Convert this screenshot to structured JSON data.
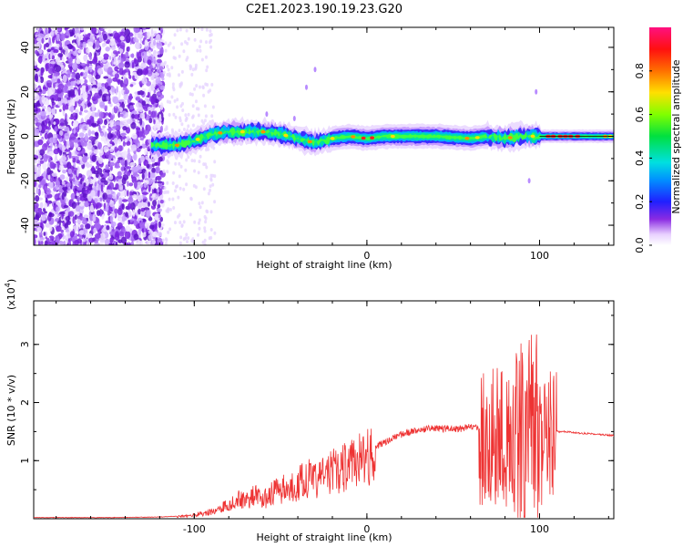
{
  "title": "C2E1.2023.190.19.23.G20",
  "colors": {
    "snr_line": "#ee3333",
    "spectro_scatter": "#7a2ee0"
  },
  "chart_data": [
    {
      "type": "heatmap",
      "xlabel": "Height of straight line (km)",
      "ylabel": "Frequency (Hz)",
      "xlim": [
        -193,
        143
      ],
      "ylim": [
        -49,
        49
      ],
      "xticks": [
        -100,
        0,
        100
      ],
      "xtick_labels": [
        "-100",
        "0",
        "100"
      ],
      "yticks": [
        -40,
        -20,
        0,
        20,
        40
      ],
      "ytick_labels": [
        "-40",
        "-20",
        "0",
        "20",
        "40"
      ],
      "grid": false,
      "colorbar": {
        "label": "Normalized spectral amplitude",
        "range": [
          0,
          1
        ],
        "ticks": [
          0.0,
          0.2,
          0.4,
          0.6,
          0.8
        ],
        "tick_labels": [
          "0.0",
          "0.2",
          "0.4",
          "0.6",
          "0.8"
        ],
        "colormap": "rainbow (white-violet-blue-cyan-green-yellow-red-magenta)"
      },
      "ridge": {
        "description": "bright narrow band of high amplitude following the frequency ridge",
        "points": [
          {
            "x": -125,
            "y": -4
          },
          {
            "x": -110,
            "y": -4
          },
          {
            "x": -100,
            "y": -2
          },
          {
            "x": -90,
            "y": 1
          },
          {
            "x": -80,
            "y": 2
          },
          {
            "x": -70,
            "y": 2
          },
          {
            "x": -60,
            "y": 2
          },
          {
            "x": -50,
            "y": 1
          },
          {
            "x": -40,
            "y": -1
          },
          {
            "x": -30,
            "y": -3
          },
          {
            "x": -20,
            "y": -1
          },
          {
            "x": -10,
            "y": 0
          },
          {
            "x": 0,
            "y": -1
          },
          {
            "x": 10,
            "y": 0
          },
          {
            "x": 20,
            "y": 0
          },
          {
            "x": 40,
            "y": 0
          },
          {
            "x": 60,
            "y": -1
          },
          {
            "x": 70,
            "y": 0
          },
          {
            "x": 80,
            "y": -1
          },
          {
            "x": 88,
            "y": 0
          },
          {
            "x": 95,
            "y": 0
          },
          {
            "x": 100,
            "y": 0
          },
          {
            "x": 110,
            "y": 0
          },
          {
            "x": 125,
            "y": 0
          },
          {
            "x": 143,
            "y": 0
          }
        ]
      }
    },
    {
      "type": "line",
      "xlabel": "Height of straight line (km)",
      "ylabel": "SNR (10 * v/v)",
      "y_multiplier": "(x10",
      "y_multiplier_exp": "4",
      "y_multiplier_close": ")",
      "xlim": [
        -193,
        143
      ],
      "ylim": [
        0,
        3.75
      ],
      "xticks": [
        -100,
        0,
        100
      ],
      "xtick_labels": [
        "-100",
        "0",
        "100"
      ],
      "yticks": [
        1,
        2,
        3
      ],
      "ytick_labels": [
        "1",
        "2",
        "3"
      ],
      "grid": false,
      "series": [
        {
          "values_x": [
            -193,
            -150,
            -120,
            -105,
            -95,
            -88,
            -82,
            -78,
            -74,
            -70,
            -65,
            -60,
            -55,
            -50,
            -45,
            -40,
            -35,
            -30,
            -25,
            -20,
            -15,
            -10,
            -5,
            0,
            5,
            10,
            15,
            20,
            25,
            30,
            35,
            40,
            45,
            50,
            55,
            60,
            65,
            70,
            72,
            75,
            78,
            80,
            83,
            85,
            88,
            90,
            92,
            94,
            96,
            98,
            100,
            102,
            104,
            106,
            108,
            110,
            112,
            115,
            120,
            125,
            130,
            135,
            143
          ],
          "values_y": [
            0.02,
            0.02,
            0.03,
            0.05,
            0.1,
            0.15,
            0.25,
            0.3,
            0.4,
            0.35,
            0.45,
            0.35,
            0.5,
            0.55,
            0.6,
            0.65,
            0.8,
            0.7,
            0.85,
            0.9,
            0.95,
            1.05,
            1.1,
            1.2,
            1.25,
            1.3,
            1.4,
            1.45,
            1.5,
            1.5,
            1.55,
            1.55,
            1.55,
            1.55,
            1.55,
            1.58,
            1.55,
            1.6,
            1.7,
            1.4,
            1.5,
            1.8,
            1.3,
            1.6,
            1.4,
            2.0,
            1.2,
            1.6,
            1.1,
            1.8,
            1.3,
            1.5,
            1.2,
            1.6,
            1.1,
            1.5,
            1.5,
            1.5,
            1.48,
            1.47,
            1.46,
            1.45,
            1.43
          ]
        }
      ]
    }
  ]
}
